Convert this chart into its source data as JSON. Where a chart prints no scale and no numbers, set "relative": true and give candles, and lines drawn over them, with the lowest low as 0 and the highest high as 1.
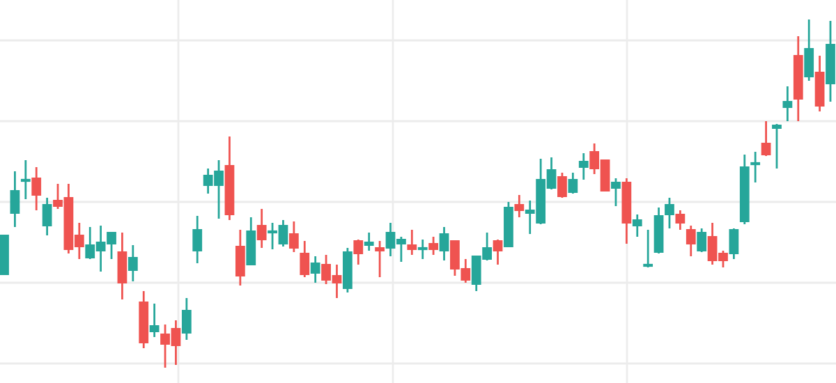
{
  "chart_data": {
    "type": "candlestick",
    "relative": true,
    "grid": true,
    "categories": [
      null,
      null,
      null,
      null,
      null,
      null,
      null,
      null,
      null,
      null,
      null,
      null,
      null,
      null,
      null,
      null,
      null,
      null,
      null,
      null,
      null,
      null,
      null,
      null,
      null,
      null,
      null,
      null,
      null,
      null,
      null,
      null,
      null,
      null,
      null,
      null,
      null,
      null,
      null,
      null,
      null,
      null,
      null,
      null,
      null,
      null,
      null,
      null,
      null,
      null,
      null,
      null,
      null,
      null,
      null,
      null,
      null,
      null,
      null,
      null,
      null,
      null,
      null,
      null,
      null,
      null,
      null,
      null,
      null,
      null,
      null,
      null,
      null,
      null,
      null,
      null,
      null,
      null
    ],
    "ohlc": [
      [
        0.268,
        0.38,
        0.268,
        0.38
      ],
      [
        0.444,
        0.564,
        0.404,
        0.508
      ],
      [
        0.536,
        0.596,
        0.484,
        0.54
      ],
      [
        0.544,
        0.576,
        0.452,
        0.496
      ],
      [
        0.408,
        0.488,
        0.38,
        0.468
      ],
      [
        0.48,
        0.528,
        0.456,
        0.464
      ],
      [
        0.488,
        0.528,
        0.328,
        0.34
      ],
      [
        0.38,
        0.416,
        0.312,
        0.348
      ],
      [
        0.316,
        0.404,
        0.312,
        0.352
      ],
      [
        0.336,
        0.408,
        0.276,
        0.36
      ],
      [
        0.356,
        0.388,
        0.312,
        0.388
      ],
      [
        0.332,
        0.388,
        0.196,
        0.244
      ],
      [
        0.28,
        0.352,
        0.248,
        0.316
      ],
      [
        0.188,
        0.22,
        0.056,
        0.072
      ],
      [
        0.104,
        0.184,
        0.088,
        0.12
      ],
      [
        0.096,
        0.124,
        0.0,
        0.068
      ],
      [
        0.112,
        0.136,
        0.008,
        0.064
      ],
      [
        0.1,
        0.2,
        0.08,
        0.164
      ],
      [
        0.336,
        0.436,
        0.3,
        0.396
      ],
      [
        0.524,
        0.572,
        0.5,
        0.552
      ],
      [
        0.524,
        0.596,
        0.428,
        0.564
      ],
      [
        0.58,
        0.664,
        0.424,
        0.44
      ],
      [
        0.348,
        0.396,
        0.236,
        0.264
      ],
      [
        0.296,
        0.432,
        0.296,
        0.392
      ],
      [
        0.408,
        0.456,
        0.344,
        0.368
      ],
      [
        0.388,
        0.416,
        0.34,
        0.392
      ],
      [
        0.356,
        0.424,
        0.348,
        0.408
      ],
      [
        0.384,
        0.42,
        0.332,
        0.344
      ],
      [
        0.328,
        0.364,
        0.26,
        0.268
      ],
      [
        0.272,
        0.32,
        0.244,
        0.3
      ],
      [
        0.296,
        0.324,
        0.24,
        0.252
      ],
      [
        0.264,
        0.296,
        0.2,
        0.244
      ],
      [
        0.228,
        0.344,
        0.216,
        0.332
      ],
      [
        0.364,
        0.368,
        0.296,
        0.328
      ],
      [
        0.352,
        0.388,
        0.336,
        0.36
      ],
      [
        0.344,
        0.364,
        0.26,
        0.336
      ],
      [
        0.344,
        0.416,
        0.32,
        0.388
      ],
      [
        0.356,
        0.376,
        0.304,
        0.368
      ],
      [
        0.352,
        0.396,
        0.324,
        0.34
      ],
      [
        0.34,
        0.368,
        0.312,
        0.344
      ],
      [
        0.356,
        0.376,
        0.324,
        0.34
      ],
      [
        0.336,
        0.404,
        0.308,
        0.384
      ],
      [
        0.364,
        0.364,
        0.264,
        0.284
      ],
      [
        0.284,
        0.312,
        0.244,
        0.252
      ],
      [
        0.24,
        0.32,
        0.22,
        0.32
      ],
      [
        0.312,
        0.388,
        0.308,
        0.344
      ],
      [
        0.364,
        0.368,
        0.296,
        0.336
      ],
      [
        0.348,
        0.476,
        0.348,
        0.46
      ],
      [
        0.468,
        0.496,
        0.432,
        0.452
      ],
      [
        0.444,
        0.48,
        0.384,
        0.452
      ],
      [
        0.416,
        0.6,
        0.412,
        0.54
      ],
      [
        0.516,
        0.604,
        0.512,
        0.568
      ],
      [
        0.548,
        0.56,
        0.488,
        0.492
      ],
      [
        0.504,
        0.56,
        0.5,
        0.54
      ],
      [
        0.576,
        0.616,
        0.54,
        0.592
      ],
      [
        0.62,
        0.644,
        0.556,
        0.572
      ],
      [
        0.596,
        0.596,
        0.508,
        0.508
      ],
      [
        0.516,
        0.544,
        0.464,
        0.532
      ],
      [
        0.532,
        0.544,
        0.356,
        0.416
      ],
      [
        0.408,
        0.44,
        0.376,
        0.424
      ],
      [
        0.292,
        0.396,
        0.288,
        0.296
      ],
      [
        0.332,
        0.46,
        0.328,
        0.436
      ],
      [
        0.44,
        0.488,
        0.4,
        0.468
      ],
      [
        0.44,
        0.452,
        0.396,
        0.416
      ],
      [
        0.396,
        0.408,
        0.32,
        0.356
      ],
      [
        0.336,
        0.4,
        0.332,
        0.388
      ],
      [
        0.376,
        0.416,
        0.296,
        0.308
      ],
      [
        0.328,
        0.336,
        0.288,
        0.308
      ],
      [
        0.328,
        0.4,
        0.312,
        0.396
      ],
      [
        0.42,
        0.612,
        0.412,
        0.576
      ],
      [
        0.584,
        0.62,
        0.532,
        0.588
      ],
      [
        0.644,
        0.708,
        0.608,
        0.612
      ],
      [
        0.688,
        0.7,
        0.572,
        0.696
      ],
      [
        0.748,
        0.808,
        0.708,
        0.764
      ],
      [
        0.896,
        0.952,
        0.708,
        0.772
      ],
      [
        0.836,
        1.0,
        0.824,
        0.916
      ],
      [
        0.848,
        0.896,
        0.736,
        0.752
      ],
      [
        0.816,
        0.996,
        0.764,
        0.928
      ]
    ]
  }
}
